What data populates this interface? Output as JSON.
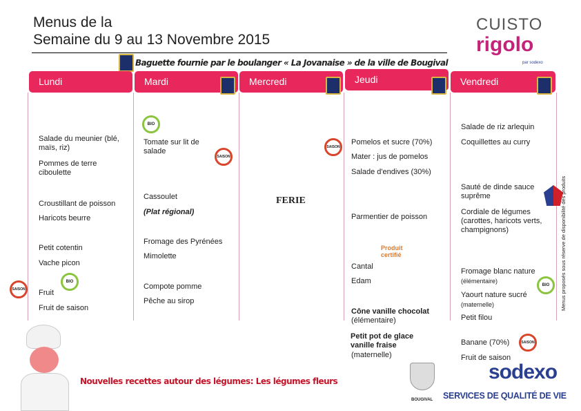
{
  "header": {
    "title_line1": "Menus de la",
    "title_line2": "Semaine du 9 au 13 Novembre 2015",
    "bread_note": "Baguette fournie par le boulanger « La Jovanaise » de la ville de Bougival"
  },
  "brand": {
    "cuisto": "CUISTO",
    "rigolo": "rigolo",
    "par": "par sodexo"
  },
  "days": [
    "Lundi",
    "Mardi",
    "Mercredi",
    "Jeudi",
    "Vendredi"
  ],
  "lundi": [
    "Salade du meunier (blé, maïs, riz)",
    "Pommes de terre ciboulette",
    "Croustillant de poisson",
    "Haricots beurre",
    "Petit cotentin",
    "Vache picon",
    "Fruit",
    "Fruit de saison"
  ],
  "mardi": [
    "Tomate sur lit de salade",
    "Cassoulet",
    "(Plat régional)",
    "Fromage des Pyrénées",
    "Mimolette",
    "Compote pomme",
    "Pêche au sirop"
  ],
  "mercredi": {
    "ferie": "FERIE"
  },
  "jeudi": [
    "Pomelos et sucre (70%)",
    "Mater : jus de pomelos",
    "Salade d'endives (30%)",
    "Parmentier de poisson",
    "Cantal",
    "Edam",
    "Cône vanille chocolat",
    "(élémentaire)",
    "Petit pot de glace vanille fraise",
    "(maternelle)"
  ],
  "vendredi": [
    "Salade de riz arlequin",
    "Coquillettes au curry",
    "Sauté de dinde sauce suprême",
    "Cordiale de légumes (carottes, haricots verts, champignons)",
    "Fromage blanc nature",
    "(élémentaire)",
    "Yaourt nature sucré",
    "(maternelle)",
    "Petit filou",
    "Banane (70%)",
    "Fruit de saison"
  ],
  "labels": {
    "saison": "SAISON",
    "bio": "BIO",
    "produit_certifie": "Produit certifié"
  },
  "footer": {
    "note": "Nouvelles recettes  autour des légumes: Les légumes fleurs",
    "sodexo": "sodexo",
    "tagline": "SERVICES DE QUALITÉ DE VIE",
    "bougival": "BOUGIVAL"
  },
  "side_note": "Menus proposés sous réserve de disponibilité des produits",
  "colors": {
    "accent": "#e8275d",
    "sodexo_blue": "#2a3f8f"
  }
}
